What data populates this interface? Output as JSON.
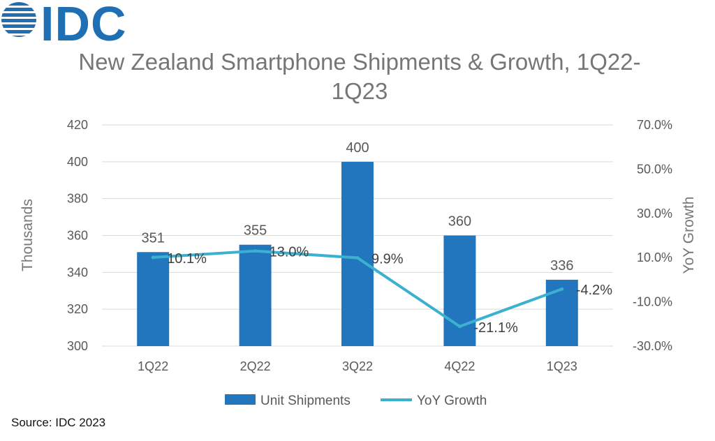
{
  "brand": {
    "name": "IDC",
    "color": "#1f6fb5"
  },
  "source": "Source: IDC 2023",
  "chart_data": {
    "type": "bar+line",
    "title_line1": "New Zealand Smartphone Shipments & Growth, 1Q22-",
    "title_line2": "1Q23",
    "categories": [
      "1Q22",
      "2Q22",
      "3Q22",
      "4Q22",
      "1Q23"
    ],
    "ylabel": "Thousands",
    "y2label": "YoY Growth",
    "ylim": [
      300,
      420
    ],
    "y_ticks": [
      "300",
      "320",
      "340",
      "360",
      "380",
      "400",
      "420"
    ],
    "y2lim": [
      -30,
      70
    ],
    "y2_ticks": [
      "-30.0%",
      "-10.0%",
      "10.0%",
      "30.0%",
      "50.0%",
      "70.0%"
    ],
    "grid": true,
    "legend_position": "bottom",
    "series": [
      {
        "name": "Unit Shipments",
        "type": "bar",
        "axis": "left",
        "color": "#2176bd",
        "values": [
          351,
          355,
          400,
          360,
          336
        ],
        "labels": [
          "351",
          "355",
          "400",
          "360",
          "336"
        ]
      },
      {
        "name": "YoY Growth",
        "type": "line",
        "axis": "right",
        "color": "#3bb0cf",
        "values": [
          10.1,
          13.0,
          9.9,
          -21.1,
          -4.2
        ],
        "labels": [
          "10.1%",
          "13.0%",
          "9.9%",
          "-21.1%",
          "-4.2%"
        ]
      }
    ]
  }
}
